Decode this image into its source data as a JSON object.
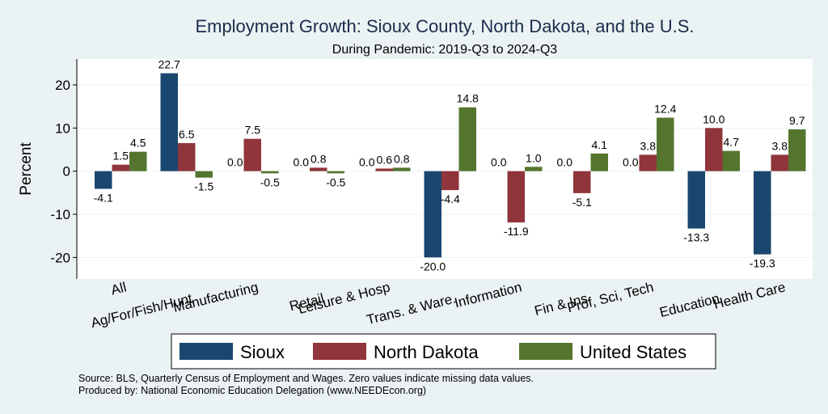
{
  "chart_data": {
    "type": "bar",
    "title": "Employment Growth: Sioux County, North Dakota, and the U.S.",
    "subtitle": "During Pandemic: 2019-Q3 to 2024-Q3",
    "ylabel": "Percent",
    "ylim": [
      -25,
      26
    ],
    "yticks": [
      -20,
      -10,
      0,
      10,
      20
    ],
    "categories": [
      "All",
      "Ag/For/Fish/Hunt",
      "Manufacturing",
      "Retail",
      "Leisure & Hosp",
      "Trans. & Ware.",
      "Information",
      "Fin & Ins",
      "Prof, Sci, Tech",
      "Education",
      "Health Care"
    ],
    "series": [
      {
        "name": "Sioux",
        "color": "#1a476f",
        "values": [
          -4.1,
          22.7,
          0.0,
          0.0,
          0.0,
          -20.0,
          0.0,
          0.0,
          0.0,
          -13.3,
          -19.3
        ]
      },
      {
        "name": "North Dakota",
        "color": "#90353b",
        "values": [
          1.5,
          6.5,
          7.5,
          0.8,
          0.6,
          -4.4,
          -11.9,
          -5.1,
          3.8,
          10.0,
          3.8
        ]
      },
      {
        "name": "United States",
        "color": "#55752f",
        "values": [
          4.5,
          -1.5,
          -0.5,
          -0.5,
          0.8,
          14.8,
          1.0,
          4.1,
          12.4,
          4.7,
          9.7
        ]
      }
    ],
    "legend_position": "bottom",
    "grid": true
  },
  "notes": {
    "source": "Source: BLS, Quarterly Census of Employment and Wages. Zero values indicate missing data values.",
    "produced": "Produced by: National Economic Education Delegation (www.NEEDEcon.org)"
  }
}
